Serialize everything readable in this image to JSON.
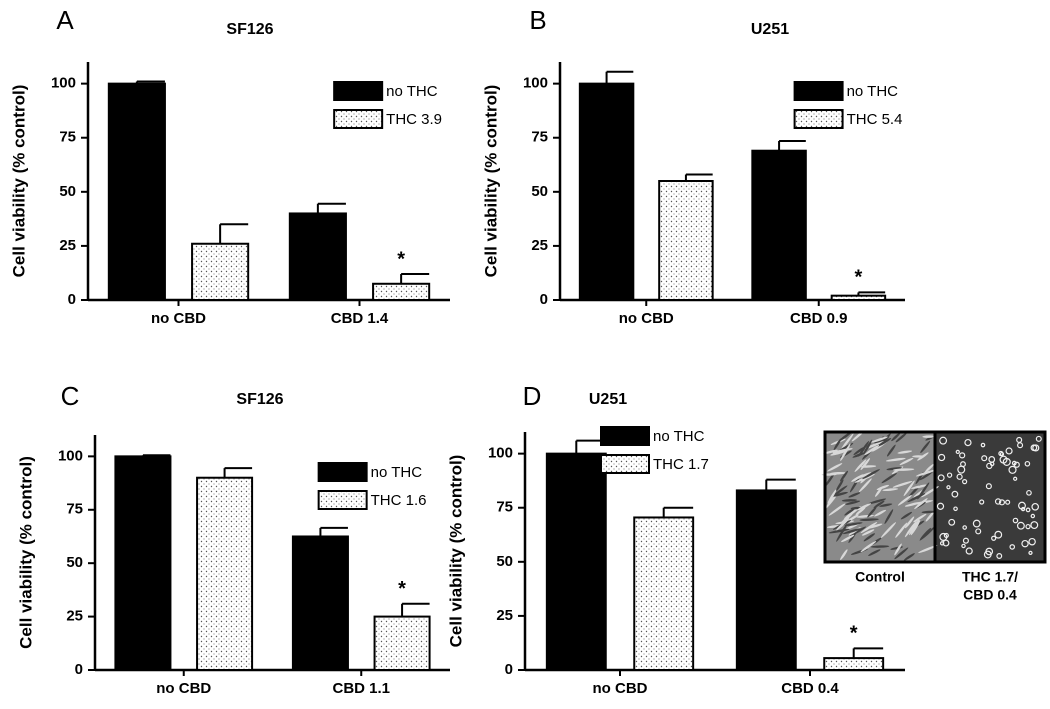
{
  "chart_data": [
    {
      "type": "bar",
      "panel": "A",
      "title": "SF126",
      "y_label": "Cell viability (% control)",
      "categories": [
        "no CBD",
        "CBD 1.4"
      ],
      "series": [
        {
          "name": "no THC",
          "color": "#000000",
          "values": [
            100,
            40
          ],
          "errors": [
            1,
            4.5
          ],
          "annotations": [
            null,
            null
          ]
        },
        {
          "name": "THC 3.9",
          "color": "#ffffff",
          "pattern": "dotted",
          "values": [
            26,
            7.5
          ],
          "errors": [
            9,
            4.5
          ],
          "annotations": [
            null,
            "*"
          ]
        }
      ],
      "ylim": [
        0,
        110
      ],
      "yticks": [
        0,
        25,
        50,
        75,
        100
      ],
      "legend": "upper right",
      "grid": false
    },
    {
      "type": "bar",
      "panel": "B",
      "title": "U251",
      "y_label": "Cell viability (% control)",
      "categories": [
        "no CBD",
        "CBD 0.9"
      ],
      "series": [
        {
          "name": "no THC",
          "color": "#000000",
          "values": [
            100,
            69
          ],
          "errors": [
            5.5,
            4.5
          ],
          "annotations": [
            null,
            null
          ]
        },
        {
          "name": "THC 5.4",
          "color": "#ffffff",
          "pattern": "dotted",
          "values": [
            55,
            2
          ],
          "errors": [
            3,
            1.5
          ],
          "annotations": [
            null,
            "*"
          ]
        }
      ],
      "ylim": [
        0,
        110
      ],
      "yticks": [
        0,
        25,
        50,
        75,
        100
      ],
      "legend": "upper right",
      "grid": false
    },
    {
      "type": "bar",
      "panel": "C",
      "title": "SF126",
      "y_label": "Cell viability (% control)",
      "categories": [
        "no CBD",
        "CBD 1.1"
      ],
      "series": [
        {
          "name": "no THC",
          "color": "#000000",
          "values": [
            100,
            62.5
          ],
          "errors": [
            0.5,
            4
          ],
          "annotations": [
            null,
            null
          ]
        },
        {
          "name": "THC 1.6",
          "color": "#ffffff",
          "pattern": "dotted",
          "values": [
            90,
            25
          ],
          "errors": [
            4.5,
            6
          ],
          "annotations": [
            null,
            "*"
          ]
        }
      ],
      "ylim": [
        0,
        110
      ],
      "yticks": [
        0,
        25,
        50,
        75,
        100
      ],
      "legend": "center right",
      "grid": false
    },
    {
      "type": "bar",
      "panel": "D",
      "title": "U251",
      "y_label": "Cell viability (% control)",
      "categories": [
        "no CBD",
        "CBD 0.4"
      ],
      "series": [
        {
          "name": "no THC",
          "color": "#000000",
          "values": [
            100,
            83
          ],
          "errors": [
            6,
            5
          ],
          "annotations": [
            null,
            null
          ]
        },
        {
          "name": "THC 1.7",
          "color": "#ffffff",
          "pattern": "dotted",
          "values": [
            70.5,
            5.5
          ],
          "errors": [
            4.5,
            4.5
          ],
          "annotations": [
            null,
            "*"
          ]
        }
      ],
      "ylim": [
        0,
        110
      ],
      "yticks": [
        0,
        25,
        50,
        75,
        100
      ],
      "legend": "upper center",
      "grid": false,
      "inset": {
        "left_label": "Control",
        "right_label": [
          "THC 1.7/",
          "CBD 0.4"
        ]
      }
    }
  ]
}
